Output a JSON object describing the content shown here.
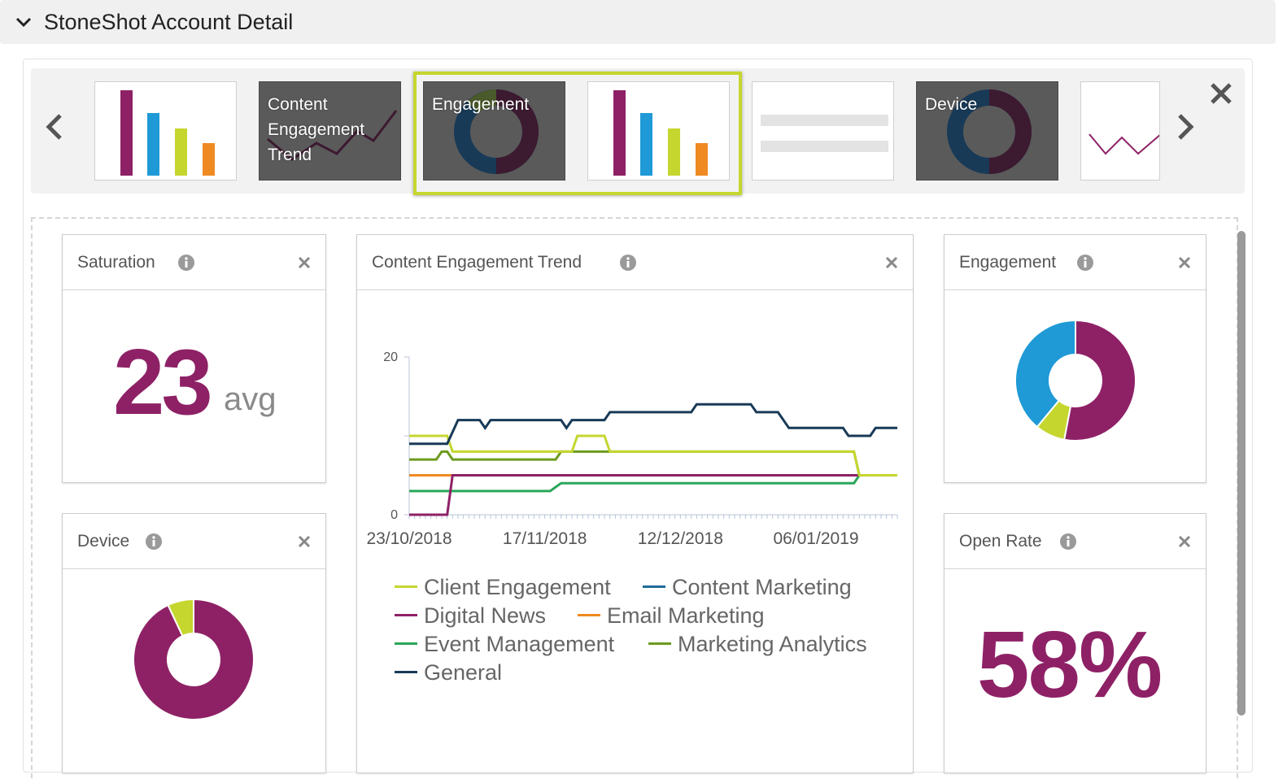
{
  "header": {
    "title": "StoneShot Account Detail"
  },
  "carousel": {
    "thumbnails": [
      {
        "id": "bar-1",
        "style": "light",
        "label": ""
      },
      {
        "id": "trend",
        "style": "dark",
        "label_lines": [
          "Content",
          "Engagement",
          "Trend"
        ]
      },
      {
        "id": "engagement",
        "style": "dark",
        "label": "Engagement"
      },
      {
        "id": "bar-2",
        "style": "light",
        "label": ""
      },
      {
        "id": "table",
        "style": "light",
        "label": ""
      },
      {
        "id": "device",
        "style": "dark",
        "label": "Device"
      },
      {
        "id": "line",
        "style": "light",
        "label": ""
      }
    ]
  },
  "widgets": {
    "saturation": {
      "title": "Saturation",
      "value": "23",
      "unit": "avg"
    },
    "trend": {
      "title": "Content Engagement Trend"
    },
    "engagement": {
      "title": "Engagement"
    },
    "device": {
      "title": "Device"
    },
    "open_rate": {
      "title": "Open Rate",
      "value": "58%"
    }
  },
  "colors": {
    "purple": "#8e2166",
    "blue": "#1f9ad6",
    "lime": "#c5d62f",
    "orange": "#ef8a22",
    "dark_navy": "#183a57",
    "dark_wine": "#3c1a30",
    "selection": "#c5d62f"
  },
  "icons": {
    "collapse": "chevron-down-icon",
    "info": "info-icon",
    "close": "close-icon",
    "prev": "chevron-left-icon",
    "next": "chevron-right-icon"
  },
  "chart_data": [
    {
      "type": "line",
      "title": "Content Engagement Trend",
      "x_tick_labels": [
        "23/10/2018",
        "17/11/2018",
        "12/12/2018",
        "06/01/2019"
      ],
      "y_tick_labels": [
        "0",
        "20"
      ],
      "ylim": [
        0,
        20
      ],
      "x_range_days": [
        0,
        90
      ],
      "series": [
        {
          "name": "Client Engagement",
          "color": "#c5d62f",
          "points": [
            [
              0,
              10
            ],
            [
              7,
              10
            ],
            [
              8,
              8
            ],
            [
              30,
              8
            ],
            [
              31,
              10
            ],
            [
              36,
              10
            ],
            [
              37,
              8
            ],
            [
              82,
              8
            ],
            [
              83,
              5
            ],
            [
              90,
              5
            ]
          ]
        },
        {
          "name": "Content Marketing",
          "color": "#1f6d9a",
          "points": []
        },
        {
          "name": "Digital News",
          "color": "#8e2166",
          "points": [
            [
              0,
              0
            ],
            [
              7,
              0
            ],
            [
              8,
              5
            ],
            [
              90,
              5
            ]
          ]
        },
        {
          "name": "Email Marketing",
          "color": "#ef8a22",
          "points": [
            [
              0,
              5
            ],
            [
              90,
              5
            ]
          ]
        },
        {
          "name": "Event Management",
          "color": "#2aa65a",
          "points": [
            [
              0,
              3
            ],
            [
              26,
              3
            ],
            [
              28,
              4
            ],
            [
              82,
              4
            ],
            [
              83,
              5
            ],
            [
              90,
              5
            ]
          ]
        },
        {
          "name": "Marketing Analytics",
          "color": "#6d9a1e",
          "points": [
            [
              0,
              7
            ],
            [
              5,
              7
            ],
            [
              6,
              8
            ],
            [
              7,
              8
            ],
            [
              8,
              7
            ],
            [
              27,
              7
            ],
            [
              28,
              8
            ],
            [
              82,
              8
            ],
            [
              83,
              5
            ],
            [
              90,
              5
            ]
          ]
        },
        {
          "name": "General",
          "color": "#183a57",
          "points": [
            [
              0,
              9
            ],
            [
              7,
              9
            ],
            [
              9,
              12
            ],
            [
              13,
              12
            ],
            [
              14,
              11
            ],
            [
              15,
              12
            ],
            [
              28,
              12
            ],
            [
              29,
              11
            ],
            [
              30,
              12
            ],
            [
              36,
              12
            ],
            [
              37,
              13
            ],
            [
              52,
              13
            ],
            [
              53,
              14
            ],
            [
              63,
              14
            ],
            [
              64,
              13
            ],
            [
              68,
              13
            ],
            [
              70,
              11
            ],
            [
              80,
              11
            ],
            [
              81,
              10
            ],
            [
              85,
              10
            ],
            [
              86,
              11
            ],
            [
              90,
              11
            ]
          ]
        }
      ]
    },
    {
      "type": "pie",
      "title": "Engagement",
      "slices": [
        {
          "value": 53,
          "color": "#8e2166"
        },
        {
          "value": 8,
          "color": "#c5d62f"
        },
        {
          "value": 39,
          "color": "#1f9ad6"
        }
      ]
    },
    {
      "type": "pie",
      "title": "Device",
      "slices": [
        {
          "value": 93,
          "color": "#8e2166"
        },
        {
          "value": 7,
          "color": "#c5d62f"
        }
      ]
    }
  ]
}
